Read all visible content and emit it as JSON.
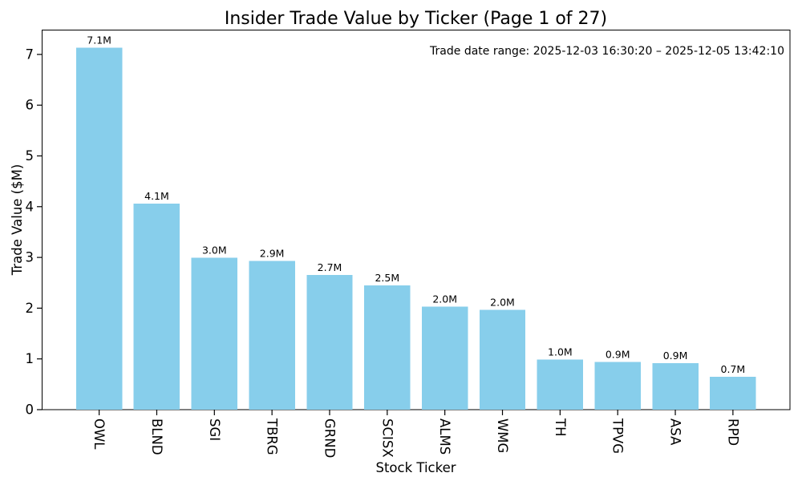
{
  "figure": {
    "background": "#ffffff"
  },
  "chart_data": {
    "type": "bar",
    "title": "Insider Trade Value by Ticker (Page 1 of 27)",
    "xlabel": "Stock Ticker",
    "ylabel": "Trade Value ($M)",
    "annotation": "Trade date range: 2025-12-03 16:30:20 – 2025-12-05 13:42:10",
    "categories": [
      "OWL",
      "BLND",
      "SGI",
      "TBRG",
      "GRND",
      "SCISX",
      "ALMS",
      "WMG",
      "TH",
      "TPVG",
      "ASA",
      "RPD"
    ],
    "values": [
      7.13,
      4.06,
      2.99,
      2.93,
      2.65,
      2.45,
      2.03,
      1.97,
      0.99,
      0.94,
      0.92,
      0.65
    ],
    "bar_labels": [
      "7.1M",
      "4.1M",
      "3.0M",
      "2.9M",
      "2.7M",
      "2.5M",
      "2.0M",
      "2.0M",
      "1.0M",
      "0.9M",
      "0.9M",
      "0.7M"
    ],
    "yticks": [
      0,
      1,
      2,
      3,
      4,
      5,
      6,
      7
    ],
    "ylim": [
      0,
      7.48
    ],
    "xtick_rotation": 90,
    "grid": false,
    "legend_position": "none",
    "bar_color": "#87CEEB",
    "text_color": "#000000",
    "spine_color": "#000000"
  }
}
